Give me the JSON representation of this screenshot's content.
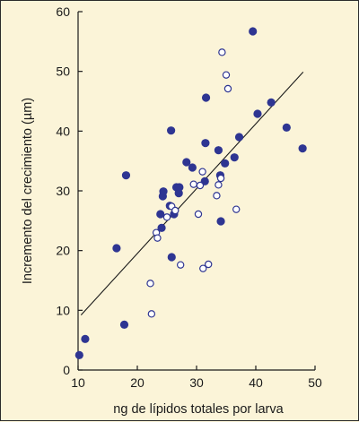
{
  "chart_data": {
    "type": "scatter",
    "title": "",
    "xlabel": "ng de lípidos totales por larva",
    "ylabel": "Incremento del crecimiento (µm)",
    "xlim": [
      10,
      50
    ],
    "ylim": [
      0,
      60
    ],
    "xticks": [
      "10",
      "20",
      "30",
      "40",
      "50"
    ],
    "yticks": [
      "0",
      "10",
      "20",
      "30",
      "40",
      "50",
      "60"
    ],
    "grid": false,
    "colors": {
      "marker": "#2e3592",
      "line": "#1a1a1a",
      "background": "#fbf4d8"
    },
    "series": [
      {
        "marker": "filled",
        "points": [
          [
            10.2,
            2.5
          ],
          [
            11.2,
            5.2
          ],
          [
            16.5,
            20.4
          ],
          [
            17.8,
            7.6
          ],
          [
            18.1,
            32.6
          ],
          [
            23.9,
            26.1
          ],
          [
            24.1,
            23.8
          ],
          [
            24.3,
            29.1
          ],
          [
            24.4,
            29.9
          ],
          [
            25.5,
            27.5
          ],
          [
            25.7,
            40.1
          ],
          [
            25.8,
            18.9
          ],
          [
            26.2,
            26.1
          ],
          [
            26.6,
            30.6
          ],
          [
            27.0,
            29.6
          ],
          [
            27.1,
            30.6
          ],
          [
            28.3,
            34.8
          ],
          [
            29.3,
            33.9
          ],
          [
            31.4,
            31.6
          ],
          [
            31.5,
            38.0
          ],
          [
            31.6,
            45.6
          ],
          [
            33.7,
            36.8
          ],
          [
            34.0,
            32.6
          ],
          [
            34.1,
            24.9
          ],
          [
            34.8,
            34.6
          ],
          [
            36.4,
            35.6
          ],
          [
            37.2,
            39.0
          ],
          [
            39.5,
            56.7
          ],
          [
            40.3,
            42.9
          ],
          [
            42.6,
            44.8
          ],
          [
            45.2,
            40.6
          ],
          [
            47.9,
            37.1
          ]
        ]
      },
      {
        "marker": "open",
        "points": [
          [
            22.2,
            14.5
          ],
          [
            22.4,
            9.4
          ],
          [
            23.2,
            23.0
          ],
          [
            23.4,
            22.1
          ],
          [
            25.0,
            25.6
          ],
          [
            25.8,
            27.4
          ],
          [
            26.4,
            26.7
          ],
          [
            27.3,
            17.6
          ],
          [
            29.5,
            31.1
          ],
          [
            30.3,
            26.1
          ],
          [
            30.6,
            30.9
          ],
          [
            31.0,
            33.2
          ],
          [
            31.1,
            17.0
          ],
          [
            32.0,
            17.7
          ],
          [
            33.4,
            29.2
          ],
          [
            33.7,
            31.0
          ],
          [
            34.1,
            32.1
          ],
          [
            34.3,
            53.2
          ],
          [
            35.0,
            49.4
          ],
          [
            35.3,
            47.1
          ],
          [
            36.7,
            26.9
          ]
        ]
      }
    ],
    "trendline": {
      "x": [
        10.5,
        48.0
      ],
      "y": [
        9.2,
        49.9
      ]
    }
  }
}
